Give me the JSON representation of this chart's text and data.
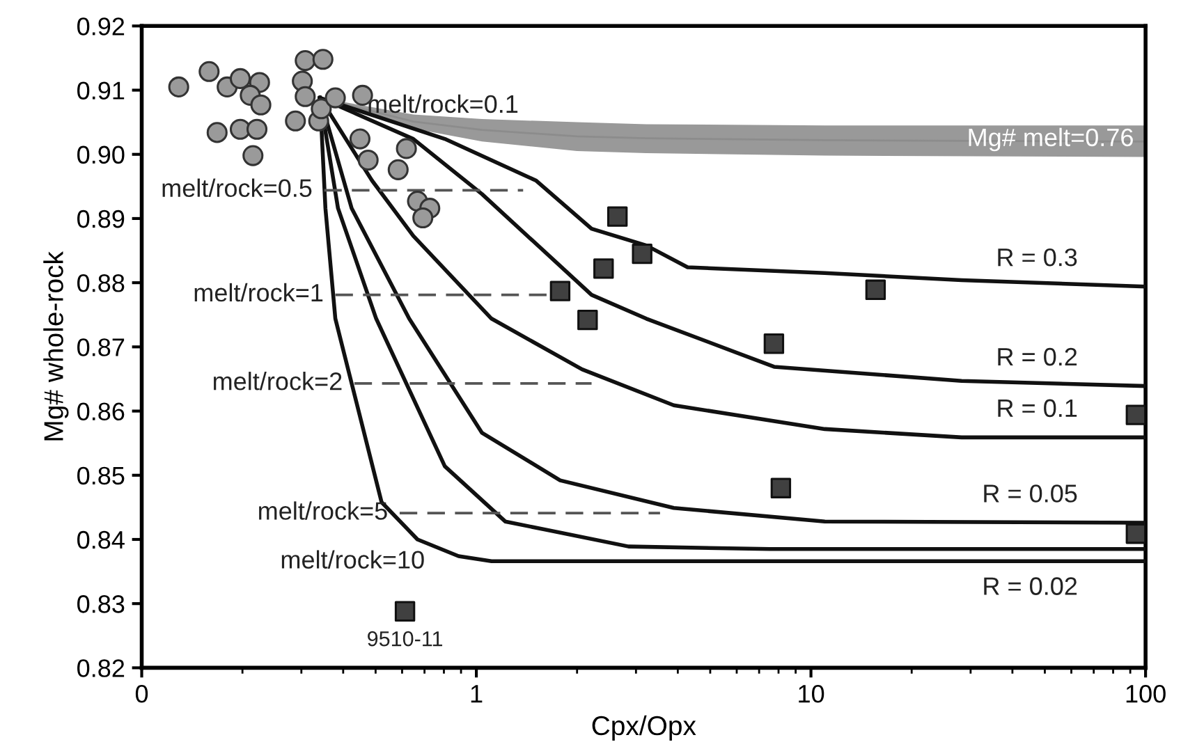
{
  "chart_data": {
    "type": "line",
    "xlabel": "Cpx/Opx",
    "ylabel": "Mg# whole-rock",
    "log": "x",
    "xlim": [
      0.1,
      100
    ],
    "xticks": [
      {
        "value": 0.1,
        "label": "0"
      },
      1,
      10,
      100
    ],
    "ylim": [
      0.82,
      0.92
    ],
    "yticks": [
      {
        "value": 0.82,
        "label": "0.82"
      },
      {
        "value": 0.83,
        "label": "0.83"
      },
      {
        "value": 0.84,
        "label": "0.84"
      },
      {
        "value": 0.85,
        "label": "0.85"
      },
      {
        "value": 0.86,
        "label": "0.86"
      },
      {
        "value": 0.87,
        "label": "0.87"
      },
      {
        "value": 0.88,
        "label": "0.88"
      },
      {
        "value": 0.89,
        "label": "0.89"
      },
      {
        "value": 0.9,
        "label": "0.90"
      },
      {
        "value": 0.91,
        "label": "0.91"
      },
      {
        "value": 0.92,
        "label": "0.92"
      }
    ],
    "grid": false,
    "legend": false,
    "series": [
      {
        "name": "Mg# melt=0.76",
        "color": "#999999",
        "x": [
          0.341,
          0.648,
          1.04,
          2.0,
          3.22,
          11,
          100
        ],
        "values": [
          0.9088,
          0.9051,
          0.9038,
          0.9028,
          0.9025,
          0.9022,
          0.902
        ],
        "lower": [
          0.9088,
          0.904,
          0.902,
          0.9005,
          0.9002,
          0.8998,
          0.8996
        ],
        "upper": [
          0.9088,
          0.9062,
          0.9055,
          0.905,
          0.9047,
          0.9045,
          0.9045
        ]
      },
      {
        "name": "R = 0.3",
        "color": "#111111",
        "line_style": "solid",
        "x": [
          0.341,
          0.805,
          1.51,
          2.21,
          3.22,
          4.28,
          11.0,
          28.2,
          100
        ],
        "values": [
          0.9088,
          0.9024,
          0.8959,
          0.8884,
          0.8858,
          0.8824,
          0.8815,
          0.8804,
          0.8794
        ]
      },
      {
        "name": "R = 0.2",
        "color": "#111111",
        "line_style": "solid",
        "x": [
          0.341,
          0.648,
          1.04,
          2.21,
          3.22,
          7.76,
          28.2,
          100
        ],
        "values": [
          0.9088,
          0.9024,
          0.8938,
          0.8781,
          0.8744,
          0.8669,
          0.8647,
          0.8639
        ]
      },
      {
        "name": "R = 0.1",
        "color": "#111111",
        "line_style": "solid",
        "x": [
          0.341,
          0.488,
          0.648,
          1.11,
          2.07,
          3.89,
          11.0,
          28.2,
          100
        ],
        "values": [
          0.9088,
          0.8959,
          0.8873,
          0.8744,
          0.8665,
          0.8609,
          0.8572,
          0.8559,
          0.8559
        ]
      },
      {
        "name": "R = 0.05",
        "color": "#111111",
        "line_style": "solid",
        "x": [
          0.341,
          0.424,
          0.63,
          1.04,
          1.78,
          3.89,
          11,
          100
        ],
        "values": [
          0.9088,
          0.8916,
          0.8744,
          0.8566,
          0.8492,
          0.8449,
          0.8428,
          0.8426
        ]
      },
      {
        "color": "#111111",
        "line_style": "solid",
        "x": [
          0.341,
          0.386,
          0.502,
          0.805,
          1.22,
          2.85,
          7.53,
          100
        ],
        "values": [
          0.9088,
          0.8916,
          0.8744,
          0.8514,
          0.8428,
          0.8389,
          0.8385,
          0.8385
        ]
      },
      {
        "name": "R = 0.02",
        "color": "#111111",
        "line_style": "solid",
        "x": [
          0.341,
          0.354,
          0.379,
          0.521,
          0.667,
          0.885,
          1.11,
          100
        ],
        "values": [
          0.9088,
          0.8916,
          0.8744,
          0.8458,
          0.84,
          0.8374,
          0.8366,
          0.8366
        ]
      },
      {
        "color": "#555555",
        "line_style": "dashed",
        "x": [
          0.351,
          1.38
        ],
        "values": [
          0.8944,
          0.8944
        ]
      },
      {
        "color": "#555555",
        "line_style": "dashed",
        "x": [
          0.379,
          1.66
        ],
        "values": [
          0.8781,
          0.8781
        ]
      },
      {
        "color": "#555555",
        "line_style": "dashed",
        "x": [
          0.432,
          2.21
        ],
        "values": [
          0.8643,
          0.8643
        ]
      },
      {
        "color": "#555555",
        "line_style": "dashed",
        "x": [
          0.59,
          3.54
        ],
        "values": [
          0.8441,
          0.8441
        ]
      },
      {
        "type": "scatter",
        "marker": "circle",
        "color": "#9a9a9a",
        "x": [
          0.129,
          0.159,
          0.18,
          0.197,
          0.225,
          0.211,
          0.227,
          0.168,
          0.197,
          0.221,
          0.215,
          0.308,
          0.348,
          0.302,
          0.308,
          0.288,
          0.338,
          0.344,
          0.379,
          0.457,
          0.449,
          0.475,
          0.618,
          0.584,
          0.667,
          0.726,
          0.692
        ],
        "values": [
          0.9105,
          0.9129,
          0.9105,
          0.9118,
          0.9112,
          0.9092,
          0.9077,
          0.9034,
          0.9039,
          0.9039,
          0.8998,
          0.9146,
          0.9148,
          0.9114,
          0.909,
          0.9052,
          0.9052,
          0.9071,
          0.9088,
          0.9092,
          0.9024,
          0.8991,
          0.9009,
          0.8976,
          0.8927,
          0.8916,
          0.8901
        ]
      },
      {
        "type": "scatter",
        "marker": "square",
        "color": "#404040",
        "x": [
          2.64,
          3.13,
          2.4,
          1.78,
          2.15,
          7.75,
          15.6,
          8.13,
          93.6,
          93.6,
          0.612
        ],
        "values": [
          0.8903,
          0.8845,
          0.8822,
          0.8787,
          0.8742,
          0.8705,
          0.8789,
          0.848,
          0.8594,
          0.8409,
          0.8288
        ]
      }
    ],
    "annotations": [
      "melt/rock=0.1",
      {
        "text": "melt/rock=0.5",
        "x": 0.351,
        "y": 0.8944
      },
      {
        "text": "melt/rock=1",
        "x": 0.379,
        "y": 0.8781
      },
      {
        "text": "melt/rock=2",
        "x": 0.432,
        "y": 0.8643
      },
      {
        "text": "melt/rock=5",
        "x": 0.59,
        "y": 0.8441
      },
      "melt/rock=10",
      {
        "text": "9510-11",
        "x": 0.612,
        "y": 0.8288
      }
    ]
  }
}
